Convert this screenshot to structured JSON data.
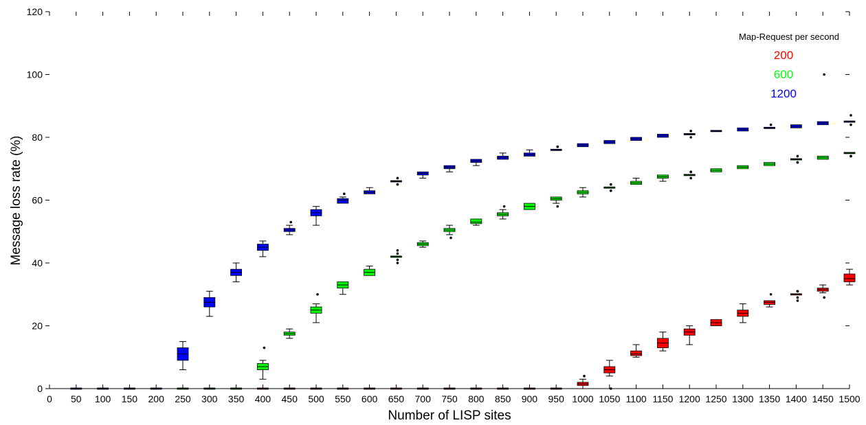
{
  "chart_data": {
    "type": "box",
    "xlabel": "Number of LISP sites",
    "ylabel": "Message loss rate (%)",
    "ylim": [
      0,
      120
    ],
    "yticks": [
      0,
      20,
      40,
      60,
      80,
      100,
      120
    ],
    "xlim": [
      0,
      1500
    ],
    "xticks": [
      0,
      50,
      100,
      150,
      200,
      250,
      300,
      350,
      400,
      450,
      500,
      550,
      600,
      650,
      700,
      750,
      800,
      850,
      900,
      950,
      1000,
      1050,
      1100,
      1150,
      1200,
      1250,
      1300,
      1350,
      1400,
      1450,
      1500
    ],
    "grid": false,
    "legend": {
      "title": "Map-Request per second",
      "placement": "top-right"
    },
    "series": [
      {
        "name": "200",
        "color": "#ff0000",
        "boxes": [
          {
            "x": 400,
            "min": 0,
            "q1": 0,
            "median": 0,
            "q3": 0,
            "max": 0,
            "outliers": []
          },
          {
            "x": 450,
            "min": 0,
            "q1": 0,
            "median": 0,
            "q3": 0,
            "max": 0,
            "outliers": []
          },
          {
            "x": 500,
            "min": 0,
            "q1": 0,
            "median": 0,
            "q3": 0,
            "max": 0,
            "outliers": []
          },
          {
            "x": 550,
            "min": 0,
            "q1": 0,
            "median": 0,
            "q3": 0,
            "max": 0,
            "outliers": []
          },
          {
            "x": 600,
            "min": 0,
            "q1": 0,
            "median": 0,
            "q3": 0,
            "max": 0,
            "outliers": []
          },
          {
            "x": 650,
            "min": 0,
            "q1": 0,
            "median": 0,
            "q3": 0,
            "max": 0,
            "outliers": []
          },
          {
            "x": 700,
            "min": 0,
            "q1": 0,
            "median": 0,
            "q3": 0,
            "max": 0,
            "outliers": []
          },
          {
            "x": 750,
            "min": 0,
            "q1": 0,
            "median": 0,
            "q3": 0,
            "max": 0,
            "outliers": []
          },
          {
            "x": 800,
            "min": 0,
            "q1": 0,
            "median": 0,
            "q3": 0,
            "max": 0,
            "outliers": []
          },
          {
            "x": 850,
            "min": 0,
            "q1": 0,
            "median": 0,
            "q3": 0,
            "max": 0,
            "outliers": []
          },
          {
            "x": 900,
            "min": 0,
            "q1": 0,
            "median": 0,
            "q3": 0,
            "max": 0,
            "outliers": []
          },
          {
            "x": 950,
            "min": 0,
            "q1": 0,
            "median": 0,
            "q3": 0,
            "max": 0,
            "outliers": []
          },
          {
            "x": 1000,
            "min": 0,
            "q1": 1,
            "median": 1.5,
            "q3": 2,
            "max": 3,
            "outliers": [
              4
            ]
          },
          {
            "x": 1050,
            "min": 4,
            "q1": 5,
            "median": 6,
            "q3": 7,
            "max": 9,
            "outliers": [
              0
            ]
          },
          {
            "x": 1100,
            "min": 10,
            "q1": 10.5,
            "median": 11,
            "q3": 12,
            "max": 14,
            "outliers": []
          },
          {
            "x": 1150,
            "min": 12,
            "q1": 13,
            "median": 14.5,
            "q3": 16,
            "max": 18,
            "outliers": []
          },
          {
            "x": 1200,
            "min": 14,
            "q1": 17,
            "median": 18,
            "q3": 19,
            "max": 20,
            "outliers": []
          },
          {
            "x": 1250,
            "min": 20,
            "q1": 20,
            "median": 21,
            "q3": 22,
            "max": 22,
            "outliers": []
          },
          {
            "x": 1300,
            "min": 21,
            "q1": 23,
            "median": 24,
            "q3": 25,
            "max": 27,
            "outliers": []
          },
          {
            "x": 1350,
            "min": 26,
            "q1": 26.8,
            "median": 27.5,
            "q3": 28,
            "max": 28,
            "outliers": [
              30
            ]
          },
          {
            "x": 1400,
            "min": 30,
            "q1": 30,
            "median": 30,
            "q3": 30,
            "max": 30,
            "outliers": [
              31,
              31,
              29,
              28
            ]
          },
          {
            "x": 1450,
            "min": 30.5,
            "q1": 31,
            "median": 31.5,
            "q3": 32,
            "max": 33,
            "outliers": [
              29
            ]
          },
          {
            "x": 1500,
            "min": 33,
            "q1": 34,
            "median": 35,
            "q3": 36.5,
            "max": 38,
            "outliers": []
          }
        ]
      },
      {
        "name": "600",
        "color": "#00ff00",
        "boxes": [
          {
            "x": 250,
            "min": 0,
            "q1": 0,
            "median": 0,
            "q3": 0,
            "max": 0,
            "outliers": []
          },
          {
            "x": 300,
            "min": 0,
            "q1": 0,
            "median": 0,
            "q3": 0,
            "max": 0,
            "outliers": []
          },
          {
            "x": 350,
            "min": 0,
            "q1": 0,
            "median": 0,
            "q3": 0,
            "max": 0,
            "outliers": []
          },
          {
            "x": 400,
            "min": 3,
            "q1": 6,
            "median": 7,
            "q3": 8,
            "max": 9,
            "outliers": [
              13
            ]
          },
          {
            "x": 450,
            "min": 16,
            "q1": 17,
            "median": 17.5,
            "q3": 18,
            "max": 19,
            "outliers": []
          },
          {
            "x": 500,
            "min": 21,
            "q1": 24,
            "median": 25,
            "q3": 26,
            "max": 27,
            "outliers": [
              30
            ]
          },
          {
            "x": 550,
            "min": 30,
            "q1": 32,
            "median": 33,
            "q3": 34,
            "max": 34,
            "outliers": []
          },
          {
            "x": 600,
            "min": 36,
            "q1": 36,
            "median": 37,
            "q3": 38,
            "max": 39,
            "outliers": []
          },
          {
            "x": 650,
            "min": 42,
            "q1": 42,
            "median": 42,
            "q3": 42,
            "max": 42,
            "outliers": [
              44,
              43,
              41,
              40
            ]
          },
          {
            "x": 700,
            "min": 45,
            "q1": 45.5,
            "median": 46,
            "q3": 46.5,
            "max": 47,
            "outliers": []
          },
          {
            "x": 750,
            "min": 49,
            "q1": 50,
            "median": 50.5,
            "q3": 51,
            "max": 52,
            "outliers": [
              48
            ]
          },
          {
            "x": 800,
            "min": 52,
            "q1": 52.5,
            "median": 53,
            "q3": 54,
            "max": 54,
            "outliers": []
          },
          {
            "x": 850,
            "min": 54,
            "q1": 55,
            "median": 55.5,
            "q3": 56,
            "max": 57,
            "outliers": [
              58
            ]
          },
          {
            "x": 900,
            "min": 57,
            "q1": 57,
            "median": 58,
            "q3": 59,
            "max": 59,
            "outliers": []
          },
          {
            "x": 950,
            "min": 59,
            "q1": 60,
            "median": 60.5,
            "q3": 61,
            "max": 61,
            "outliers": [
              58
            ]
          },
          {
            "x": 1000,
            "min": 61,
            "q1": 62,
            "median": 62.5,
            "q3": 63,
            "max": 64,
            "outliers": []
          },
          {
            "x": 1050,
            "min": 64,
            "q1": 64,
            "median": 64,
            "q3": 64,
            "max": 64,
            "outliers": [
              65,
              65,
              63,
              63
            ]
          },
          {
            "x": 1100,
            "min": 65,
            "q1": 65,
            "median": 65.5,
            "q3": 66,
            "max": 67,
            "outliers": []
          },
          {
            "x": 1150,
            "min": 66,
            "q1": 67,
            "median": 67.5,
            "q3": 68,
            "max": 68,
            "outliers": []
          },
          {
            "x": 1200,
            "min": 68,
            "q1": 68,
            "median": 68,
            "q3": 68,
            "max": 68,
            "outliers": [
              69,
              69,
              67
            ]
          },
          {
            "x": 1250,
            "min": 69,
            "q1": 69,
            "median": 69.5,
            "q3": 70,
            "max": 70,
            "outliers": []
          },
          {
            "x": 1300,
            "min": 70,
            "q1": 70,
            "median": 70.5,
            "q3": 71,
            "max": 71,
            "outliers": []
          },
          {
            "x": 1350,
            "min": 71,
            "q1": 71,
            "median": 71.5,
            "q3": 72,
            "max": 72,
            "outliers": []
          },
          {
            "x": 1400,
            "min": 73,
            "q1": 73,
            "median": 73,
            "q3": 73,
            "max": 73,
            "outliers": [
              72,
              74,
              72
            ]
          },
          {
            "x": 1450,
            "min": 73,
            "q1": 73,
            "median": 73.5,
            "q3": 74,
            "max": 74,
            "outliers": []
          },
          {
            "x": 1500,
            "min": 75,
            "q1": 75,
            "median": 75,
            "q3": 75,
            "max": 75,
            "outliers": [
              74,
              74
            ]
          }
        ]
      },
      {
        "name": "1200",
        "color": "#0000ff",
        "boxes": [
          {
            "x": 50,
            "min": 0,
            "q1": 0,
            "median": 0,
            "q3": 0,
            "max": 0,
            "outliers": []
          },
          {
            "x": 100,
            "min": 0,
            "q1": 0,
            "median": 0,
            "q3": 0,
            "max": 0,
            "outliers": []
          },
          {
            "x": 150,
            "min": 0,
            "q1": 0,
            "median": 0,
            "q3": 0,
            "max": 0,
            "outliers": []
          },
          {
            "x": 200,
            "min": 0,
            "q1": 0,
            "median": 0,
            "q3": 0,
            "max": 0,
            "outliers": []
          },
          {
            "x": 250,
            "min": 6,
            "q1": 9,
            "median": 11,
            "q3": 13,
            "max": 15,
            "outliers": []
          },
          {
            "x": 300,
            "min": 23,
            "q1": 26,
            "median": 27.5,
            "q3": 29,
            "max": 31,
            "outliers": []
          },
          {
            "x": 350,
            "min": 34,
            "q1": 36,
            "median": 37,
            "q3": 38,
            "max": 40,
            "outliers": []
          },
          {
            "x": 400,
            "min": 42,
            "q1": 44,
            "median": 45,
            "q3": 46,
            "max": 47,
            "outliers": []
          },
          {
            "x": 450,
            "min": 49,
            "q1": 50,
            "median": 50.5,
            "q3": 51,
            "max": 52,
            "outliers": [
              53
            ]
          },
          {
            "x": 500,
            "min": 52,
            "q1": 55,
            "median": 56,
            "q3": 57,
            "max": 58,
            "outliers": []
          },
          {
            "x": 550,
            "min": 59,
            "q1": 59,
            "median": 60,
            "q3": 60.5,
            "max": 61,
            "outliers": [
              62
            ]
          },
          {
            "x": 600,
            "min": 62,
            "q1": 62,
            "median": 62.5,
            "q3": 63,
            "max": 64,
            "outliers": []
          },
          {
            "x": 650,
            "min": 66,
            "q1": 66,
            "median": 66,
            "q3": 66,
            "max": 66,
            "outliers": [
              67,
              65,
              65
            ]
          },
          {
            "x": 700,
            "min": 67,
            "q1": 68,
            "median": 68.5,
            "q3": 69,
            "max": 69,
            "outliers": []
          },
          {
            "x": 750,
            "min": 69,
            "q1": 70,
            "median": 70.5,
            "q3": 71,
            "max": 71,
            "outliers": []
          },
          {
            "x": 800,
            "min": 71,
            "q1": 72,
            "median": 72.5,
            "q3": 73,
            "max": 73,
            "outliers": []
          },
          {
            "x": 850,
            "min": 73,
            "q1": 73,
            "median": 73.5,
            "q3": 74,
            "max": 75,
            "outliers": []
          },
          {
            "x": 900,
            "min": 74,
            "q1": 74,
            "median": 74.5,
            "q3": 75,
            "max": 76,
            "outliers": []
          },
          {
            "x": 950,
            "min": 76,
            "q1": 76,
            "median": 76,
            "q3": 76,
            "max": 76,
            "outliers": [
              77,
              77
            ]
          },
          {
            "x": 1000,
            "min": 77,
            "q1": 77,
            "median": 77.5,
            "q3": 78,
            "max": 78,
            "outliers": []
          },
          {
            "x": 1050,
            "min": 78,
            "q1": 78,
            "median": 78.5,
            "q3": 79,
            "max": 79,
            "outliers": []
          },
          {
            "x": 1100,
            "min": 79,
            "q1": 79,
            "median": 79.5,
            "q3": 80,
            "max": 80,
            "outliers": []
          },
          {
            "x": 1150,
            "min": 80,
            "q1": 80,
            "median": 80.5,
            "q3": 81,
            "max": 81,
            "outliers": []
          },
          {
            "x": 1200,
            "min": 81,
            "q1": 81,
            "median": 81,
            "q3": 81,
            "max": 81,
            "outliers": [
              82,
              80
            ]
          },
          {
            "x": 1250,
            "min": 82,
            "q1": 82,
            "median": 82,
            "q3": 82,
            "max": 82,
            "outliers": []
          },
          {
            "x": 1300,
            "min": 82,
            "q1": 82,
            "median": 82.5,
            "q3": 83,
            "max": 83,
            "outliers": []
          },
          {
            "x": 1350,
            "min": 83,
            "q1": 83,
            "median": 83,
            "q3": 83,
            "max": 83,
            "outliers": [
              84
            ]
          },
          {
            "x": 1400,
            "min": 83,
            "q1": 83,
            "median": 83.5,
            "q3": 84,
            "max": 84,
            "outliers": []
          },
          {
            "x": 1450,
            "min": 84,
            "q1": 84,
            "median": 84.5,
            "q3": 85,
            "max": 85,
            "outliers": [
              100
            ]
          },
          {
            "x": 1500,
            "min": 85,
            "q1": 85,
            "median": 85,
            "q3": 85,
            "max": 85,
            "outliers": [
              87,
              84
            ]
          }
        ]
      }
    ]
  }
}
